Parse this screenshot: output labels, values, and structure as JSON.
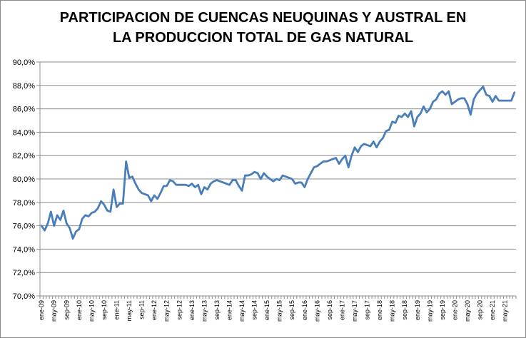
{
  "chart_data": {
    "type": "line",
    "title_lines": [
      "PARTICIPACION DE CUENCAS NEUQUINAS Y AUSTRAL EN",
      "LA PRODUCCION TOTAL DE GAS NATURAL"
    ],
    "xlabel": "",
    "ylabel": "",
    "ylim": [
      70,
      90
    ],
    "y_ticks": [
      "70,0%",
      "72,0%",
      "74,0%",
      "76,0%",
      "78,0%",
      "80,0%",
      "82,0%",
      "84,0%",
      "86,0%",
      "88,0%",
      "90,0%"
    ],
    "x_tick_labels": [
      "ene-09",
      "may-09",
      "sep-09",
      "ene-10",
      "may-10",
      "sep-10",
      "ene-11",
      "may-11",
      "sep-11",
      "ene-12",
      "may-12",
      "sep-12",
      "ene-13",
      "may-13",
      "sep-13",
      "ene-14",
      "may-14",
      "sep-14",
      "ene-15",
      "may-15",
      "sep-15",
      "ene-16",
      "may-16",
      "sep-16",
      "ene-17",
      "may-17",
      "sep-17",
      "ene-18",
      "may-18",
      "sep-18",
      "ene-19",
      "may-19",
      "sep-19",
      "ene-20",
      "may-20",
      "sep-20",
      "ene-21",
      "may-21"
    ],
    "grid": "horizontal",
    "line_color": "#4a7ebb",
    "series": [
      {
        "values": [
          76.0,
          75.6,
          76.2,
          77.2,
          76.0,
          76.9,
          76.5,
          77.3,
          76.2,
          75.8,
          74.9,
          75.5,
          75.7,
          76.6,
          76.9,
          76.8,
          77.1,
          77.2,
          77.5,
          78.1,
          77.8,
          77.3,
          77.2,
          79.1,
          77.6,
          77.9,
          77.9,
          81.5,
          80.1,
          80.2,
          79.6,
          79.1,
          78.8,
          78.7,
          78.6,
          78.1,
          78.6,
          78.3,
          78.8,
          79.4,
          79.4,
          79.9,
          79.8,
          79.5,
          79.5,
          79.5,
          79.5,
          79.4,
          79.6,
          79.3,
          79.5,
          78.7,
          79.3,
          79.1,
          79.6,
          79.8,
          79.9,
          79.8,
          79.7,
          79.6,
          79.5,
          79.9,
          79.9,
          79.4,
          79.0,
          80.3,
          80.3,
          80.4,
          80.6,
          80.5,
          80.0,
          80.5,
          80.2,
          80.0,
          79.8,
          80.0,
          79.9,
          80.3,
          80.2,
          80.1,
          80.0,
          79.6,
          79.7,
          79.7,
          79.3,
          80.0,
          80.5,
          81.0,
          81.1,
          81.3,
          81.5,
          81.5,
          81.6,
          81.7,
          81.8,
          81.3,
          81.7,
          82.0,
          81.0,
          82.0,
          82.7,
          82.3,
          82.8,
          83.0,
          82.9,
          82.8,
          83.2,
          82.7,
          83.2,
          83.5,
          84.1,
          84.2,
          84.9,
          84.8,
          85.4,
          85.3,
          85.6,
          85.3,
          85.8,
          84.5,
          85.3,
          85.6,
          86.2,
          85.7,
          86.0,
          86.6,
          86.8,
          87.3,
          87.5,
          87.2,
          87.5,
          86.4,
          86.6,
          86.8,
          86.9,
          86.9,
          86.4,
          85.5,
          86.8,
          87.3,
          87.6,
          87.9,
          87.2,
          87.1,
          86.6,
          87.1,
          86.7,
          86.7,
          86.7,
          86.7,
          86.7,
          87.4
        ]
      }
    ]
  }
}
